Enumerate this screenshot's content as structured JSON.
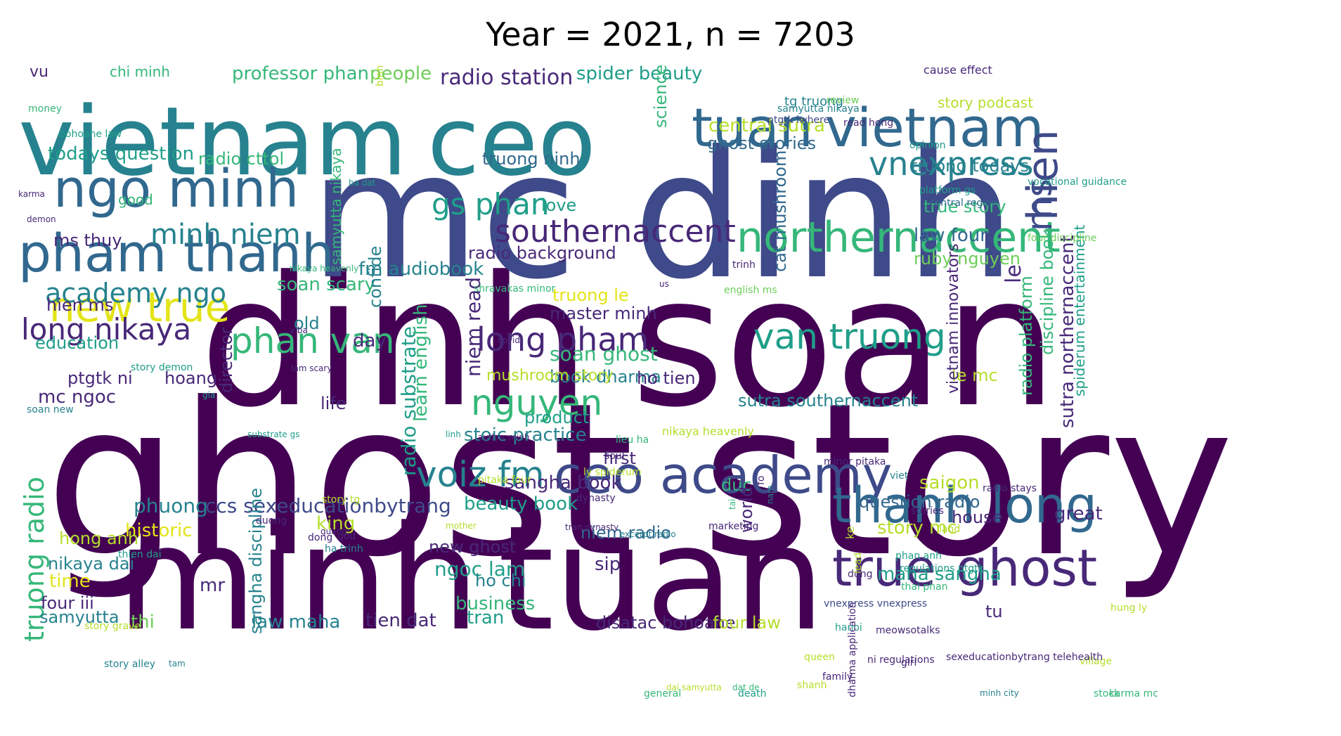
{
  "title": "Year = 2021, n = 7203",
  "palette": {
    "dp": "#440154",
    "pu": "#482878",
    "bl": "#3e4a89",
    "sb": "#31688e",
    "te": "#26828e",
    "gt": "#1f9e89",
    "gr": "#35b779",
    "lg": "#6ece58",
    "yg": "#b5de2b",
    "ye": "#e3e418"
  },
  "words": [
    {
      "t": "ghost story",
      "c": "dp"
    },
    {
      "t": "dinh",
      "c": "dp"
    },
    {
      "t": "soan",
      "c": "dp"
    },
    {
      "t": "mc dinh",
      "c": "bl"
    },
    {
      "t": "minh",
      "c": "dp"
    },
    {
      "t": "tuan",
      "c": "dp"
    },
    {
      "t": "vietnam",
      "c": "te"
    },
    {
      "t": "ceo",
      "c": "te"
    },
    {
      "t": "tuan",
      "c": "sb"
    },
    {
      "t": "vietnam",
      "c": "sb"
    },
    {
      "t": "ngo minh",
      "c": "sb"
    },
    {
      "t": "pham thanh",
      "c": "sb"
    },
    {
      "t": "ceo academy",
      "c": "bl"
    },
    {
      "t": "thanh long",
      "c": "sb"
    },
    {
      "t": "true",
      "c": "pu"
    },
    {
      "t": "ghost",
      "c": "pu"
    },
    {
      "t": "northernaccent",
      "c": "gr"
    },
    {
      "t": "southernaccent",
      "c": "pu"
    },
    {
      "t": "long pham",
      "c": "pu"
    },
    {
      "t": "van truong",
      "c": "gt"
    },
    {
      "t": "phan van",
      "c": "gr"
    },
    {
      "t": "new true",
      "c": "ye"
    },
    {
      "t": "nguyen",
      "c": "gr"
    },
    {
      "t": "voiz fm",
      "c": "te"
    },
    {
      "t": "vnexpress",
      "c": "te"
    },
    {
      "t": "hien",
      "c": "bl"
    },
    {
      "t": "ms",
      "c": "bl"
    },
    {
      "t": "gs phan",
      "c": "gt"
    },
    {
      "t": "long nikaya",
      "c": "pu"
    },
    {
      "t": "academy ngo",
      "c": "te"
    },
    {
      "t": "minh niem",
      "c": "te"
    },
    {
      "t": "truong radio",
      "c": "gr"
    },
    {
      "t": "radio station",
      "c": "pu"
    },
    {
      "t": "professor phan",
      "c": "gr"
    },
    {
      "t": "people",
      "c": "lg"
    },
    {
      "t": "spider beauty",
      "c": "gt"
    },
    {
      "t": "central sutra",
      "c": "yg"
    },
    {
      "t": "ghost stories",
      "c": "sb"
    },
    {
      "t": "truong todays",
      "c": "te"
    },
    {
      "t": "true story",
      "c": "gr"
    },
    {
      "t": "law four",
      "c": "sb"
    },
    {
      "t": "ruby nguyen",
      "c": "lg"
    },
    {
      "t": "todays question",
      "c": "gt"
    },
    {
      "t": "radio cttol",
      "c": "gr"
    },
    {
      "t": "truong ninh",
      "c": "sb"
    },
    {
      "t": "ms thuy",
      "c": "pu"
    },
    {
      "t": "love",
      "c": "gt"
    },
    {
      "t": "radio background",
      "c": "pu"
    },
    {
      "t": "fm audiobook",
      "c": "te"
    },
    {
      "t": "soan scary",
      "c": "gr"
    },
    {
      "t": "truong le",
      "c": "ye"
    },
    {
      "t": "master minh",
      "c": "pu"
    },
    {
      "t": "soan ghost",
      "c": "gr"
    },
    {
      "t": "book dharma",
      "c": "te"
    },
    {
      "t": "hien ms",
      "c": "pu"
    },
    {
      "t": "old",
      "c": "te"
    },
    {
      "t": "day",
      "c": "pu"
    },
    {
      "t": "education",
      "c": "gt"
    },
    {
      "t": "ptgtk ni",
      "c": "pu"
    },
    {
      "t": "hoang",
      "c": "pu"
    },
    {
      "t": "ho tien",
      "c": "pu"
    },
    {
      "t": "mc ngoc",
      "c": "pu"
    },
    {
      "t": "life",
      "c": "pu"
    },
    {
      "t": "mushroom story",
      "c": "yg"
    },
    {
      "t": "le mc",
      "c": "yg"
    },
    {
      "t": "sutra southernaccent",
      "c": "te"
    },
    {
      "t": "product",
      "c": "gt"
    },
    {
      "t": "stoic practice",
      "c": "te"
    },
    {
      "t": "sangha book",
      "c": "pu"
    },
    {
      "t": "ccs sexeducationbytrang",
      "c": "bl"
    },
    {
      "t": "beauty book",
      "c": "gt"
    },
    {
      "t": "question radio",
      "c": "sb"
    },
    {
      "t": "saigon",
      "c": "yg"
    },
    {
      "t": "phuong",
      "c": "te"
    },
    {
      "t": "historic",
      "c": "ye"
    },
    {
      "t": "king",
      "c": "yg"
    },
    {
      "t": "niem radio",
      "c": "sb"
    },
    {
      "t": "story mc",
      "c": "yg"
    },
    {
      "t": "house",
      "c": "pu"
    },
    {
      "t": "great",
      "c": "pu"
    },
    {
      "t": "hong anh",
      "c": "yg"
    },
    {
      "t": "new ghost",
      "c": "pu"
    },
    {
      "t": "ngoc lam",
      "c": "gt"
    },
    {
      "t": "maha sangha",
      "c": "gt"
    },
    {
      "t": "nikaya dai",
      "c": "te"
    },
    {
      "t": "time",
      "c": "ye"
    },
    {
      "t": "ho chi",
      "c": "te"
    },
    {
      "t": "sip",
      "c": "pu"
    },
    {
      "t": "business",
      "c": "gr"
    },
    {
      "t": "four iii",
      "c": "pu"
    },
    {
      "t": "samyutta",
      "c": "te"
    },
    {
      "t": "mr",
      "c": "pu"
    },
    {
      "t": "thi",
      "c": "lg"
    },
    {
      "t": "law maha",
      "c": "te"
    },
    {
      "t": "tien dat",
      "c": "pu"
    },
    {
      "t": "tran",
      "c": "gt"
    },
    {
      "t": "disatac bohoahe",
      "c": "pu"
    },
    {
      "t": "four law",
      "c": "yg"
    },
    {
      "t": "tu",
      "c": "pu"
    },
    {
      "t": "first",
      "c": "pu"
    },
    {
      "t": "duc",
      "c": "gr"
    },
    {
      "t": "good",
      "c": "gr"
    },
    {
      "t": "vu",
      "c": "pu"
    },
    {
      "t": "chi minh",
      "c": "gr"
    },
    {
      "t": "story podcast",
      "c": "yg"
    },
    {
      "t": "cat mushroom",
      "c": "sb"
    },
    {
      "t": "science",
      "c": "gr"
    },
    {
      "t": "samyutta nikaya",
      "c": "gr"
    },
    {
      "t": "niem read",
      "c": "pu"
    },
    {
      "t": "radio substrate",
      "c": "gt"
    },
    {
      "t": "learn english",
      "c": "gr"
    },
    {
      "t": "director",
      "c": "pu"
    },
    {
      "t": "sangha discipline",
      "c": "te"
    },
    {
      "t": "world",
      "c": "pu"
    },
    {
      "t": "confide",
      "c": "te"
    },
    {
      "t": "le",
      "c": "pu"
    },
    {
      "t": "radio platform",
      "c": "gr"
    },
    {
      "t": "discipline book",
      "c": "gr"
    },
    {
      "t": "sutra northernaccent",
      "c": "pu"
    },
    {
      "t": "spiderum entertainment",
      "c": "gt"
    },
    {
      "t": "vietnam innovators",
      "c": "pu"
    },
    {
      "t": "tg truong",
      "c": "te"
    },
    {
      "t": "cause effect",
      "c": "pu"
    },
    {
      "t": "review",
      "c": "lg"
    },
    {
      "t": "samyutta nikaya",
      "c": "te"
    },
    {
      "t": "ptgtk iwhere",
      "c": "bl"
    },
    {
      "t": "read hong",
      "c": "pu"
    },
    {
      "t": "opinion",
      "c": "gt"
    },
    {
      "t": "platform gs",
      "c": "gt"
    },
    {
      "t": "central region",
      "c": "sb"
    },
    {
      "t": "vocational guidance",
      "c": "gt"
    },
    {
      "t": "four discipline",
      "c": "lg"
    },
    {
      "t": "ba dat",
      "c": "gt"
    },
    {
      "t": "karma",
      "c": "pu"
    },
    {
      "t": "demon",
      "c": "pu"
    },
    {
      "t": "bohoahe law",
      "c": "gt"
    },
    {
      "t": "money",
      "c": "gr"
    },
    {
      "t": "english ms",
      "c": "lg"
    },
    {
      "t": "trinh",
      "c": "pu"
    },
    {
      "t": "us",
      "c": "pu"
    },
    {
      "t": "nikaya heavenly",
      "c": "gr"
    },
    {
      "t": "shravakas minor",
      "c": "gr"
    },
    {
      "t": "v ba",
      "c": "pu"
    },
    {
      "t": "covid",
      "c": "pu"
    },
    {
      "t": "story demon",
      "c": "gt"
    },
    {
      "t": "lam scary",
      "c": "pu"
    },
    {
      "t": "gia",
      "c": "gt"
    },
    {
      "t": "binh",
      "c": "yg"
    },
    {
      "t": "soan new",
      "c": "te"
    },
    {
      "t": "substrate gs",
      "c": "gt"
    },
    {
      "t": "linh",
      "c": "gt"
    },
    {
      "t": "author minh",
      "c": "pu"
    },
    {
      "t": "lieu ha",
      "c": "gr"
    },
    {
      "t": "soul",
      "c": "pu"
    },
    {
      "t": "nikaya heavenly",
      "c": "yg"
    },
    {
      "t": "minor pitaka",
      "c": "pu"
    },
    {
      "t": "ly spiderum",
      "c": "yg"
    },
    {
      "t": "dynasty",
      "c": "pu"
    },
    {
      "t": "pitaka four",
      "c": "yg"
    },
    {
      "t": "viet",
      "c": "te"
    },
    {
      "t": "story tg",
      "c": "yg"
    },
    {
      "t": "duong",
      "c": "pu"
    },
    {
      "t": "quang",
      "c": "pu"
    },
    {
      "t": "dong",
      "c": "pu"
    },
    {
      "t": "ha trinh",
      "c": "te"
    },
    {
      "t": "thien dai",
      "c": "gt"
    },
    {
      "t": "god",
      "c": "pu"
    },
    {
      "t": "mother",
      "c": "yg"
    },
    {
      "t": "marketing",
      "c": "pu"
    },
    {
      "t": "radio stays",
      "c": "pu"
    },
    {
      "t": "tran dynasty",
      "c": "pu"
    },
    {
      "t": "excerpt radio",
      "c": "te"
    },
    {
      "t": "stories",
      "c": "pu"
    },
    {
      "t": "land",
      "c": "yg"
    },
    {
      "t": "phan anh",
      "c": "gt"
    },
    {
      "t": "thai phan",
      "c": "gr"
    },
    {
      "t": "regulations ptgtk",
      "c": "gt"
    },
    {
      "t": "hung ly",
      "c": "yg"
    },
    {
      "t": "vnexpress vnexpress",
      "c": "bl"
    },
    {
      "t": "story grave",
      "c": "yg"
    },
    {
      "t": "story alley",
      "c": "te"
    },
    {
      "t": "tam",
      "c": "te"
    },
    {
      "t": "ni regulations",
      "c": "pu"
    },
    {
      "t": "girl",
      "c": "pu"
    },
    {
      "t": "queen",
      "c": "yg"
    },
    {
      "t": "family",
      "c": "pu"
    },
    {
      "t": "village",
      "c": "yg"
    },
    {
      "t": "karma mc",
      "c": "gr"
    },
    {
      "t": "sexeducationbytrang telehealth",
      "c": "pu"
    },
    {
      "t": "dai samyutta",
      "c": "yg"
    },
    {
      "t": "dat de",
      "c": "gr"
    },
    {
      "t": "death",
      "c": "gt"
    },
    {
      "t": "shanh",
      "c": "yg"
    },
    {
      "t": "general",
      "c": "gr"
    },
    {
      "t": "minh city",
      "c": "te"
    },
    {
      "t": "stock",
      "c": "gr"
    },
    {
      "t": "meowsotalks",
      "c": "pu"
    },
    {
      "t": "hanoi",
      "c": "gt"
    },
    {
      "t": "dung",
      "c": "pu"
    },
    {
      "t": "dharma application",
      "c": "pu"
    },
    {
      "t": "lead",
      "c": "yg"
    },
    {
      "t": "nam",
      "c": "te"
    },
    {
      "t": "ke",
      "c": "yg"
    },
    {
      "t": "fo",
      "c": "pu"
    },
    {
      "t": "tai",
      "c": "gr"
    }
  ]
}
